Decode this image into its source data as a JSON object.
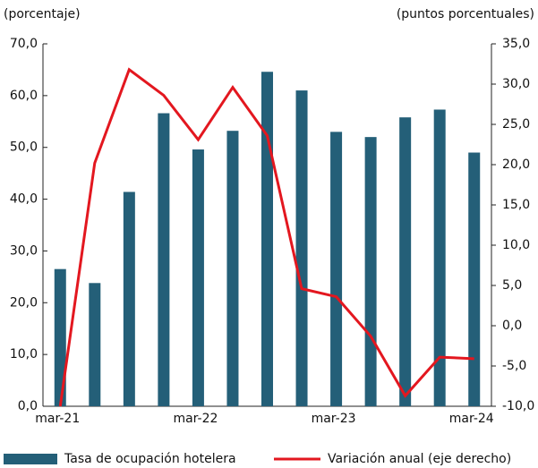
{
  "chart_data": {
    "type": "bar-line",
    "left_axis_label": "(porcentaje)",
    "right_axis_label": "(puntos porcentuales)",
    "categories": [
      "mar-21",
      null,
      null,
      null,
      "mar-22",
      null,
      null,
      null,
      "mar-23",
      null,
      null,
      null,
      "mar-24"
    ],
    "series": [
      {
        "name": "Tasa de ocupación hotelera",
        "color": "#245f78",
        "type": "bar",
        "values": [
          26.5,
          23.8,
          41.4,
          56.6,
          49.6,
          53.2,
          64.6,
          61.0,
          53.0,
          52.0,
          55.8,
          57.3,
          49.0
        ]
      },
      {
        "name": "Variación anual (eje derecho)",
        "color": "#e3171f",
        "type": "line",
        "axis": "y2",
        "values": [
          -10.0,
          20.2,
          31.8,
          28.6,
          23.1,
          29.6,
          23.6,
          4.6,
          3.6,
          -1.3,
          -8.7,
          -3.9,
          -4.1
        ]
      }
    ],
    "ylim": [
      0,
      70
    ],
    "yticks": [
      {
        "value": 0,
        "label": "0,0"
      },
      {
        "value": 10,
        "label": "10,0"
      },
      {
        "value": 20,
        "label": "20,0"
      },
      {
        "value": 30,
        "label": "30,0"
      },
      {
        "value": 40,
        "label": "40,0"
      },
      {
        "value": 50,
        "label": "50,0"
      },
      {
        "value": 60,
        "label": "60,0"
      },
      {
        "value": 70,
        "label": "70,0"
      }
    ],
    "y2lim": [
      -10,
      35
    ],
    "y2ticks": [
      {
        "value": -10,
        "label": "-10,0"
      },
      {
        "value": -5,
        "label": "-5,0"
      },
      {
        "value": 0,
        "label": "0,0"
      },
      {
        "value": 5,
        "label": "5,0"
      },
      {
        "value": 10,
        "label": "10,0"
      },
      {
        "value": 15,
        "label": "15,0"
      },
      {
        "value": 20,
        "label": "20,0"
      },
      {
        "value": 25,
        "label": "25,0"
      },
      {
        "value": 30,
        "label": "30,0"
      },
      {
        "value": 35,
        "label": "35,0"
      }
    ],
    "grid": false,
    "legend": "bottom"
  }
}
